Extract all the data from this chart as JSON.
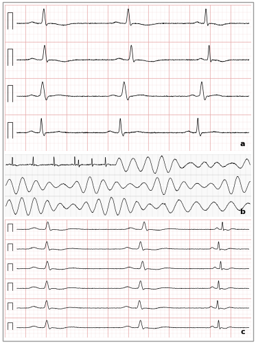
{
  "figure_width": 3.73,
  "figure_height": 5.0,
  "dpi": 100,
  "bg_color": "#ffffff",
  "border_color": "#999999",
  "panel_a": {
    "bg_color": "#fce8e8",
    "grid_major_color": "#e8aaaa",
    "grid_minor_color": "#f5d0d0",
    "num_rows": 4,
    "label": "a",
    "ecg_color": "#111111",
    "trace_lw": 0.55,
    "heart_rate": 85
  },
  "panel_b": {
    "bg_color": "#f4f4f4",
    "grid_color": "#d8d8d8",
    "num_rows": 3,
    "label": "b",
    "ecg_color": "#111111",
    "trace_lw": 0.45
  },
  "panel_c": {
    "bg_color": "#fce8e8",
    "grid_major_color": "#e8aaaa",
    "grid_minor_color": "#f5d0d0",
    "num_rows": 6,
    "label": "c",
    "ecg_color": "#111111",
    "trace_lw": 0.5,
    "heart_rate": 75
  }
}
